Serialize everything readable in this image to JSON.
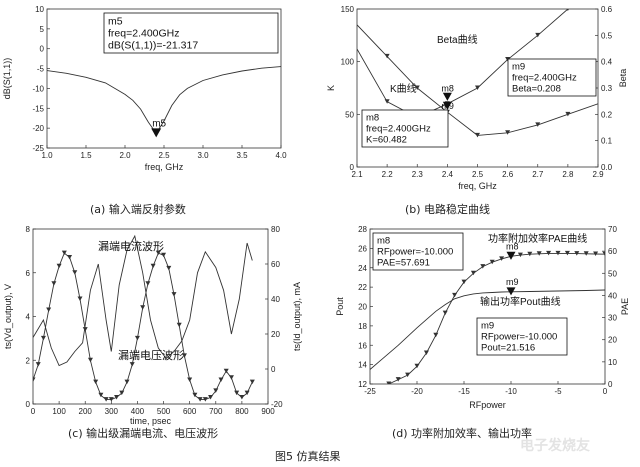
{
  "figure_title": "图5 仿真结果",
  "watermark": "电子发烧友",
  "chart_data": [
    {
      "id": "a",
      "type": "line",
      "caption": "(a)  输入端反射参数",
      "xlabel": "freq, GHz",
      "ylabel": "dB(S(1,1))",
      "xlim": [
        1.0,
        4.0
      ],
      "ylim": [
        -25,
        10
      ],
      "xticks": [
        "1.0",
        "1.5",
        "2.0",
        "2.5",
        "3.0",
        "3.5",
        "4.0"
      ],
      "yticks": [
        "10",
        "5",
        "0",
        "-5",
        "-10",
        "-15",
        "-20",
        "-25"
      ],
      "grid": false,
      "series": [
        {
          "x": [
            1.0,
            1.25,
            1.5,
            1.75,
            2.0,
            2.1,
            2.2,
            2.3,
            2.4,
            2.5,
            2.6,
            2.7,
            2.8,
            3.0,
            3.25,
            3.5,
            3.75,
            4.0
          ],
          "y": [
            -5.5,
            -6.2,
            -7.2,
            -8.6,
            -11.5,
            -13,
            -15.2,
            -18.5,
            -21.3,
            -18.2,
            -14.3,
            -11.6,
            -10.0,
            -8.0,
            -6.6,
            -5.6,
            -4.9,
            -4.5
          ]
        }
      ],
      "marker": {
        "name": "m5",
        "lines": [
          "m5",
          "freq=2.400GHz",
          "dB(S(1,1))=-21.317"
        ],
        "x": 2.4,
        "y": -21.317
      }
    },
    {
      "id": "b",
      "type": "line",
      "caption": "(b)  电路稳定曲线",
      "xlabel": "freq, GHz",
      "ylabel": "K",
      "y2label": "Beta",
      "xlim": [
        2.1,
        2.9
      ],
      "ylim": [
        0,
        150
      ],
      "y2lim": [
        0,
        0.6
      ],
      "xticks": [
        "2.1",
        "2.2",
        "2.3",
        "2.4",
        "2.5",
        "2.6",
        "2.7",
        "2.8",
        "2.9"
      ],
      "yticks": [
        "150",
        "100",
        "50",
        "0"
      ],
      "y2ticks": [
        "0.6",
        "0.5",
        "0.4",
        "0.3",
        "0.2",
        "0.1",
        "0.0"
      ],
      "grid": false,
      "series": [
        {
          "name": "K曲线",
          "axis": "left",
          "x": [
            2.1,
            2.2,
            2.3,
            2.4,
            2.5,
            2.6,
            2.7,
            2.8,
            2.9
          ],
          "y": [
            112,
            62,
            47,
            60,
            75,
            102,
            125,
            150,
            175
          ]
        },
        {
          "name": "Beta曲线",
          "axis": "right",
          "x": [
            2.1,
            2.2,
            2.3,
            2.4,
            2.5,
            2.6,
            2.7,
            2.8,
            2.9
          ],
          "y": [
            0.54,
            0.42,
            0.3,
            0.208,
            0.12,
            0.13,
            0.16,
            0.2,
            0.24
          ]
        }
      ],
      "markers": [
        {
          "name": "m8",
          "lines": [
            "m8",
            "freq=2.400GHz",
            "K=60.482"
          ],
          "x": 2.4,
          "y": 60.482,
          "axis": "left"
        },
        {
          "name": "m9",
          "lines": [
            "m9",
            "freq=2.400GHz",
            "Beta=0.208"
          ],
          "x": 2.4,
          "y": 0.208,
          "axis": "right"
        }
      ],
      "annotations": [
        "Beta曲线",
        "K曲线"
      ]
    },
    {
      "id": "c",
      "type": "line",
      "caption": "(c)  输出级漏端电流、电压波形",
      "xlabel": "time, psec",
      "ylabel": "ts(Vd_output), V",
      "y2label": "ts(Id_output), mA",
      "xlim": [
        0,
        900
      ],
      "ylim": [
        0,
        8
      ],
      "y2lim": [
        -20,
        80
      ],
      "xticks": [
        "0",
        "100",
        "200",
        "300",
        "400",
        "500",
        "600",
        "700",
        "800",
        "900"
      ],
      "yticks": [
        "8",
        "6",
        "4",
        "2",
        "0"
      ],
      "y2ticks": [
        "80",
        "60",
        "40",
        "20",
        "0",
        "-20"
      ],
      "grid": false,
      "series": [
        {
          "name": "漏端电流波形",
          "axis": "right",
          "x": [
            0,
            40,
            70,
            100,
            130,
            160,
            190,
            220,
            250,
            280,
            300,
            330,
            360,
            390,
            420,
            450,
            480,
            510,
            540,
            570,
            600,
            630,
            660,
            700,
            730,
            760,
            790,
            820,
            840
          ],
          "y": [
            18,
            28,
            12,
            2,
            4,
            10,
            15,
            45,
            60,
            28,
            10,
            48,
            68,
            76,
            55,
            28,
            12,
            6,
            10,
            16,
            28,
            55,
            67,
            58,
            45,
            20,
            40,
            72,
            62
          ]
        },
        {
          "name": "漏端电压波形",
          "axis": "left",
          "x": [
            0,
            20,
            40,
            60,
            80,
            100,
            120,
            140,
            160,
            180,
            200,
            220,
            240,
            260,
            280,
            300,
            320,
            340,
            360,
            380,
            400,
            420,
            440,
            460,
            480,
            500,
            520,
            540,
            560,
            580,
            600,
            620,
            640,
            660,
            680,
            700,
            720,
            740,
            760,
            780,
            800,
            820,
            840
          ],
          "y": [
            1.1,
            1.8,
            3.0,
            4.3,
            5.5,
            6.3,
            6.9,
            6.7,
            6.0,
            4.8,
            3.4,
            2.0,
            1.0,
            0.4,
            0.2,
            0.2,
            0.3,
            0.5,
            1.0,
            1.8,
            3.0,
            4.4,
            5.5,
            6.3,
            6.9,
            6.8,
            6.2,
            5.0,
            3.6,
            2.2,
            1.1,
            0.4,
            0.2,
            0.2,
            0.3,
            0.6,
            1.1,
            1.5,
            1.2,
            0.5,
            0.3,
            0.5,
            1.0
          ]
        }
      ],
      "annotations": [
        "漏端电流波形",
        "漏端电压波形"
      ]
    },
    {
      "id": "d",
      "type": "line",
      "caption": "(d)  功率附加效率、输出功率",
      "xlabel": "RFpower",
      "ylabel": "Pout",
      "y2label": "PAE",
      "xlim": [
        -25,
        0
      ],
      "ylim": [
        12,
        28
      ],
      "y2lim": [
        0,
        70
      ],
      "xticks": [
        "-25",
        "-20",
        "-15",
        "-10",
        "-5",
        "0"
      ],
      "yticks": [
        "28",
        "26",
        "24",
        "22",
        "20",
        "18",
        "16",
        "14",
        "12"
      ],
      "y2ticks": [
        "70",
        "60",
        "50",
        "40",
        "30",
        "20",
        "10",
        "0"
      ],
      "grid": false,
      "series": [
        {
          "name": "功率附加效率PAE曲线",
          "axis": "right",
          "x": [
            -23,
            -22,
            -21,
            -20,
            -19,
            -18,
            -17,
            -16,
            -15,
            -14,
            -13,
            -12,
            -11,
            -10,
            -9,
            -8,
            -7,
            -6,
            -5,
            -4,
            -3,
            -2,
            -1,
            0
          ],
          "y": [
            0,
            2,
            4,
            8,
            14,
            22,
            32,
            40,
            46,
            50,
            53,
            55,
            56.5,
            57.691,
            58.2,
            58.6,
            58.8,
            59,
            59,
            59,
            58.9,
            58.8,
            58.7,
            58.6
          ]
        },
        {
          "name": "输出功率Pout曲线",
          "axis": "left",
          "x": [
            -25,
            -22,
            -20,
            -18,
            -17,
            -16,
            -15,
            -14,
            -13,
            -12,
            -11,
            -10,
            -8,
            -5,
            -2,
            0
          ],
          "y": [
            13.5,
            16,
            17.8,
            19.5,
            20.2,
            20.8,
            21.1,
            21.3,
            21.4,
            21.45,
            21.5,
            21.516,
            21.55,
            21.6,
            21.65,
            21.7
          ]
        }
      ],
      "markers": [
        {
          "name": "m8",
          "lines": [
            "m8",
            "RFpower=-10.000",
            "PAE=57.691"
          ],
          "x": -10,
          "y": 57.691,
          "axis": "right"
        },
        {
          "name": "m9",
          "lines": [
            "m9",
            "RFpower=-10.000",
            "Pout=21.516"
          ],
          "x": -10,
          "y": 21.516,
          "axis": "left"
        }
      ],
      "annotations": [
        "功率附加效率PAE曲线",
        "输出功率Pout曲线"
      ]
    }
  ]
}
